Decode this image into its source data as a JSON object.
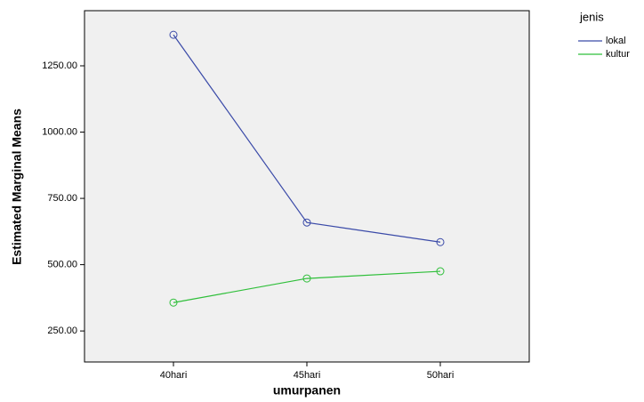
{
  "chart_data": {
    "type": "line",
    "x_label": "umurpanen",
    "y_label": "Estimated Marginal Means",
    "categories": [
      "40hari",
      "45hari",
      "50hari"
    ],
    "series": [
      {
        "name": "lokal",
        "color": "#3a4aa8",
        "values": [
          1367,
          659,
          585
        ]
      },
      {
        "name": "kultur",
        "color": "#2fbf3a",
        "values": [
          357,
          448,
          475
        ]
      }
    ],
    "ylim": [
      133,
      1458
    ],
    "yticks": [
      {
        "value": 250,
        "label": "250.00"
      },
      {
        "value": 500,
        "label": "500.00"
      },
      {
        "value": 750,
        "label": "750.00"
      },
      {
        "value": 1000,
        "label": "1000.00"
      },
      {
        "value": 1250,
        "label": "1250.00"
      }
    ],
    "legend_title": "jenis",
    "legend_position": "right",
    "markers": "circle"
  }
}
